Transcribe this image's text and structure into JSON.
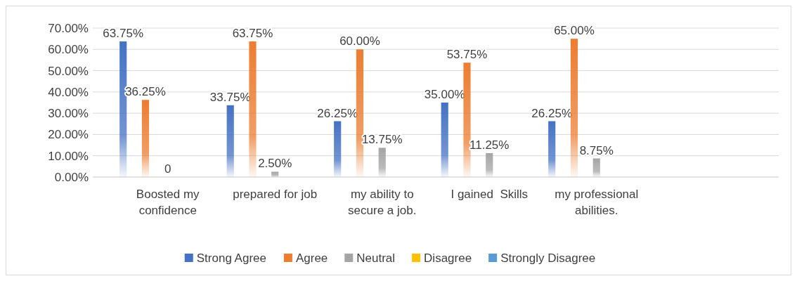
{
  "chart_data": {
    "type": "bar",
    "categories": [
      "Boosted my confidence",
      "prepared for job",
      "my ability to secure a job.",
      "I gained  Skills",
      "my professional abilities.",
      null
    ],
    "series": [
      {
        "name": "Strong Agree",
        "color": "#4472c4",
        "values": [
          63.75,
          33.75,
          26.25,
          35.0,
          26.25,
          null
        ],
        "value_labels": [
          "63.75%",
          "33.75%",
          "26.25%",
          "35.00%",
          "26.25%",
          null
        ]
      },
      {
        "name": "Agree",
        "color": "#ed7d31",
        "values": [
          36.25,
          63.75,
          60.0,
          53.75,
          65.0,
          null
        ],
        "value_labels": [
          "36.25%",
          "63.75%",
          "60.00%",
          "53.75%",
          "65.00%",
          null
        ]
      },
      {
        "name": "Neutral",
        "color": "#a5a5a5",
        "values": [
          0,
          2.5,
          13.75,
          11.25,
          8.75,
          null
        ],
        "value_labels": [
          "0",
          "2.50%",
          "13.75%",
          "11.25%",
          "8.75%",
          null
        ]
      },
      {
        "name": "Disagree",
        "color": "#ffc000",
        "values": [
          null,
          null,
          null,
          null,
          null,
          null
        ]
      },
      {
        "name": "Strongly Disagree",
        "color": "#5b9bd5",
        "values": [
          null,
          null,
          null,
          null,
          null,
          null
        ]
      }
    ],
    "ylim": [
      0,
      70
    ],
    "yticks": [
      {
        "value": 0,
        "label": "0.00%"
      },
      {
        "value": 10,
        "label": "10.00%"
      },
      {
        "value": 20,
        "label": "20.00%"
      },
      {
        "value": 30,
        "label": "30.00%"
      },
      {
        "value": 40,
        "label": "40.00%"
      },
      {
        "value": 50,
        "label": "50.00%"
      },
      {
        "value": 60,
        "label": "60.00%"
      },
      {
        "value": 70,
        "label": "70.00%"
      }
    ],
    "grid": "y",
    "legend": "bottom"
  }
}
